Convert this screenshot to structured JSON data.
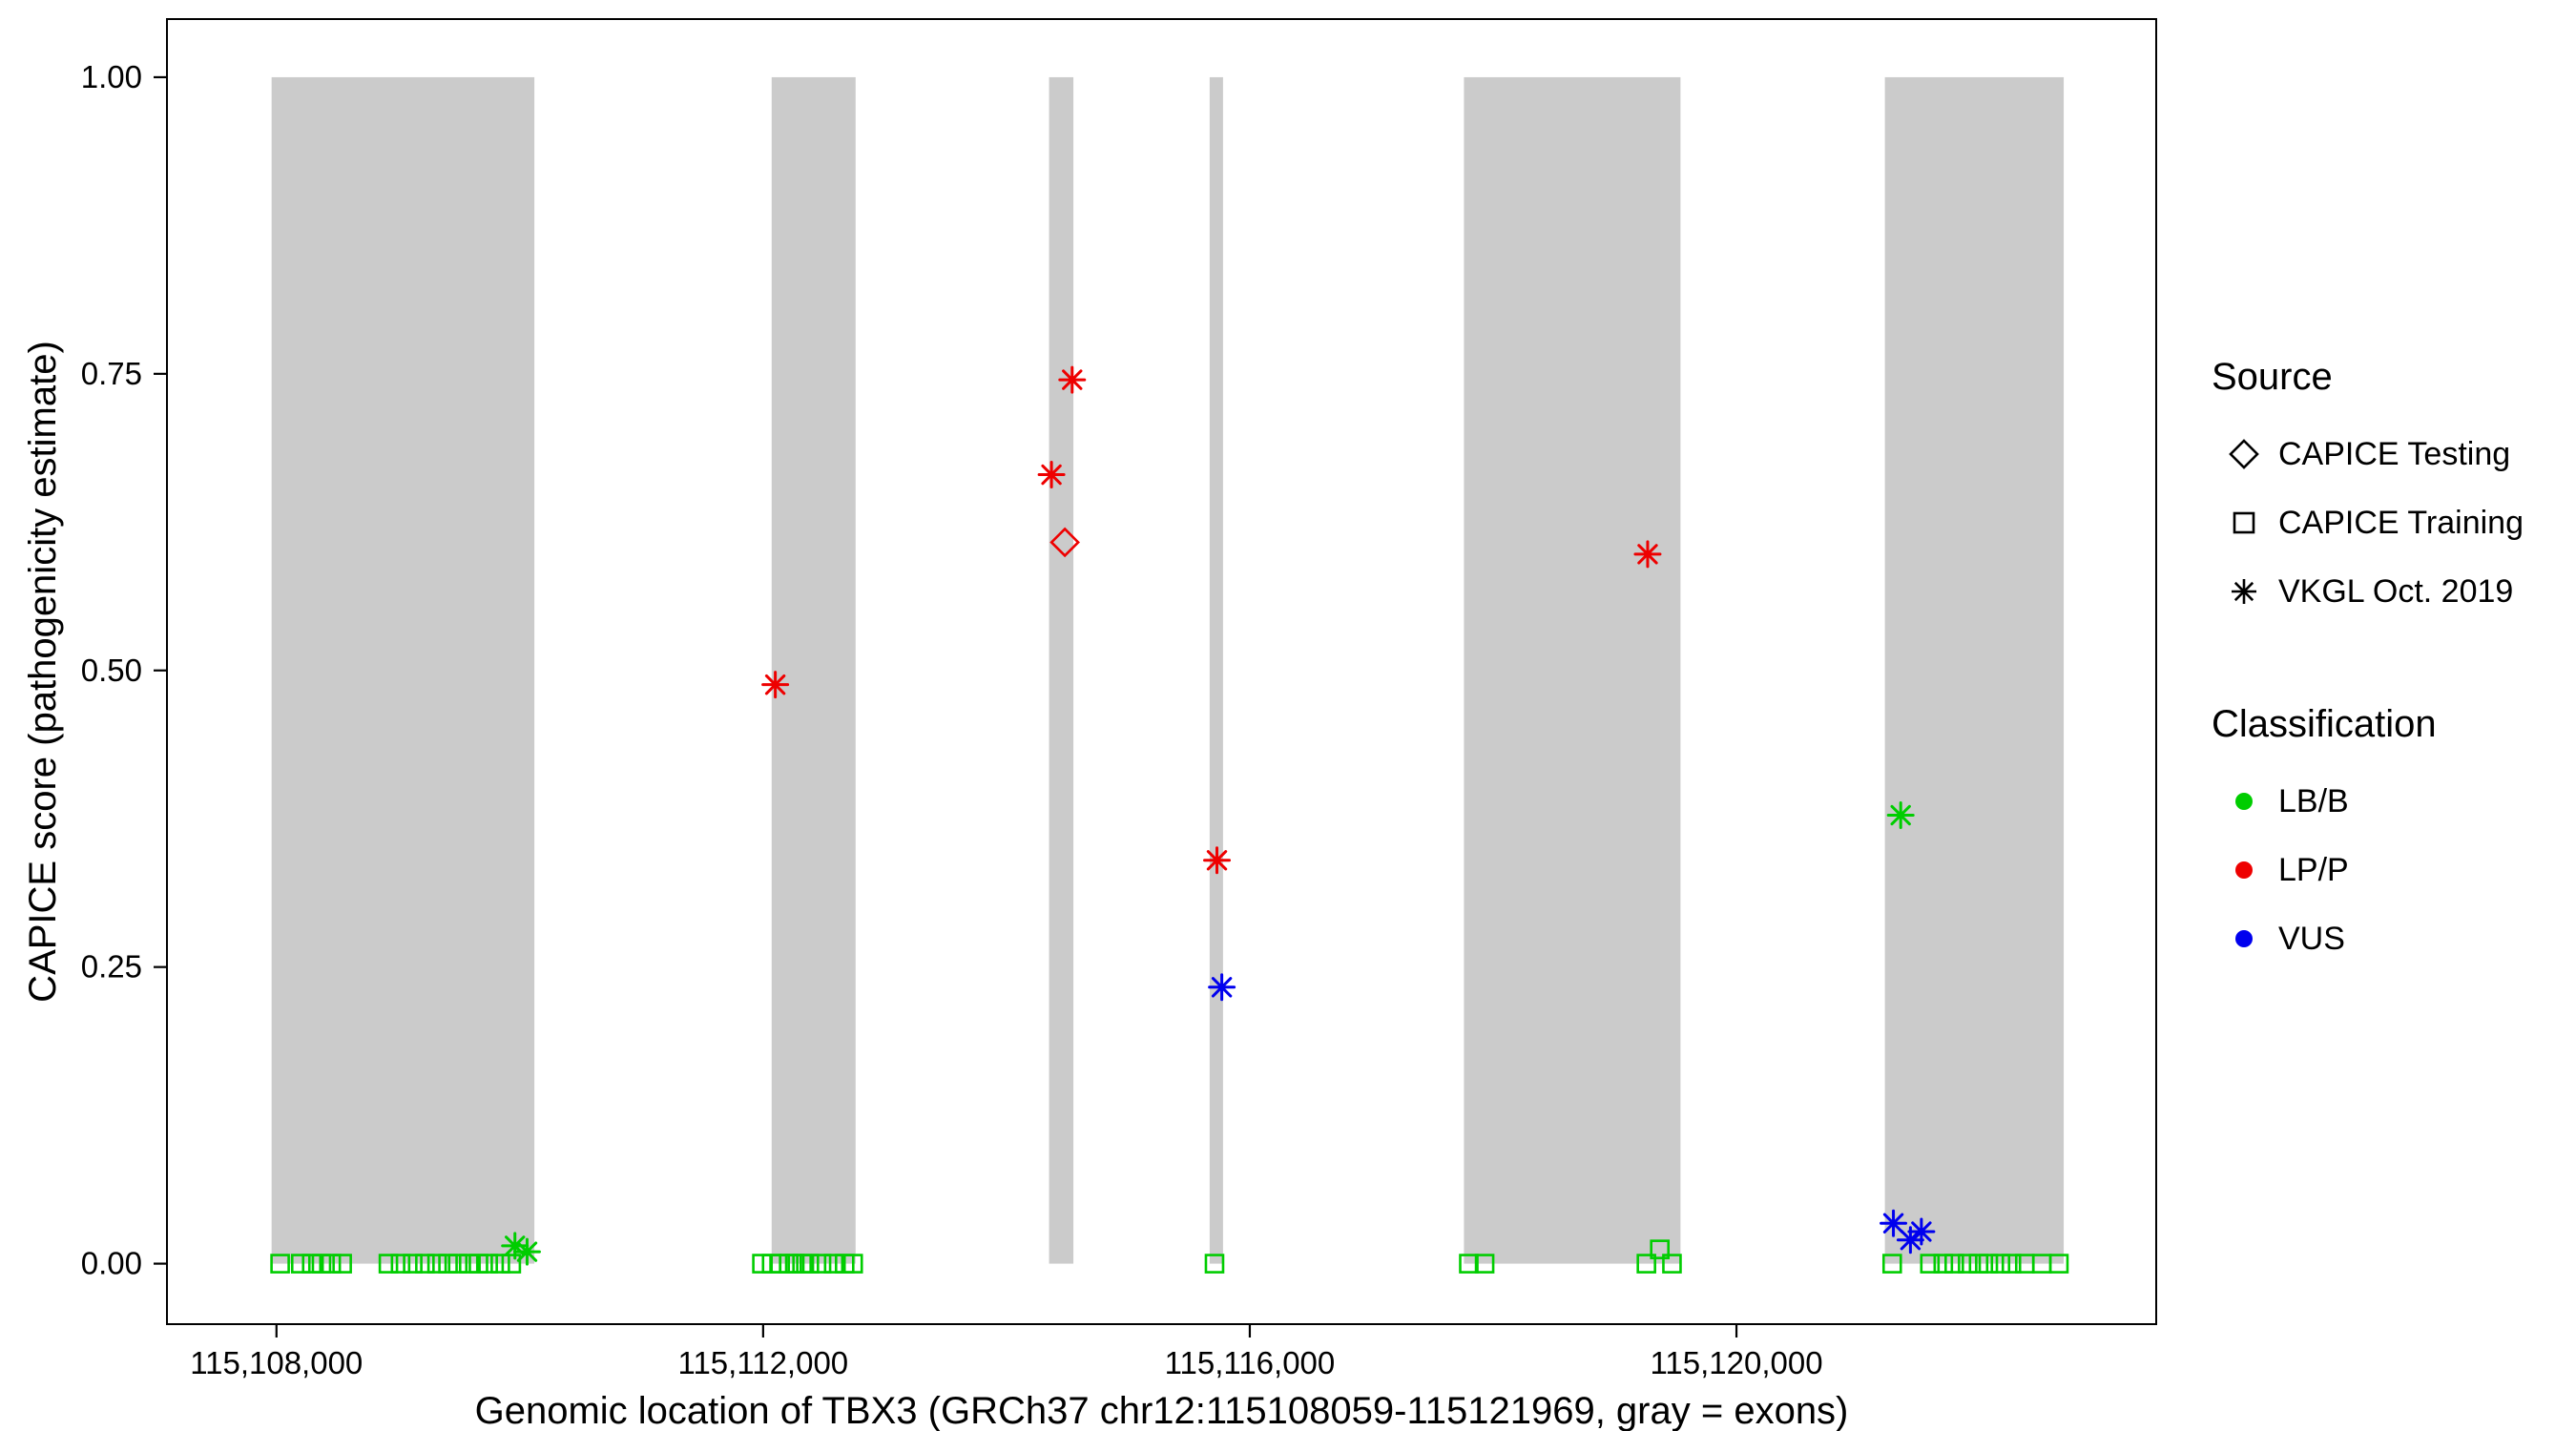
{
  "chart_data": {
    "type": "scatter",
    "title": "",
    "xlabel": "Genomic location of TBX3 (GRCh37 chr12:115108059-115121969, gray = exons)",
    "ylabel": "CAPICE score (pathogenicity estimate)",
    "xlim": [
      115107100,
      115123450
    ],
    "ylim": [
      -0.051,
      1.049
    ],
    "grid": false,
    "x_ticks": [
      {
        "value": 115108000,
        "label": "115,108,000"
      },
      {
        "value": 115112000,
        "label": "115,112,000"
      },
      {
        "value": 115116000,
        "label": "115,116,000"
      },
      {
        "value": 115120000,
        "label": "115,120,000"
      }
    ],
    "y_ticks": [
      {
        "value": 0.0,
        "label": "0.00"
      },
      {
        "value": 0.25,
        "label": "0.25"
      },
      {
        "value": 0.5,
        "label": "0.50"
      },
      {
        "value": 0.75,
        "label": "0.75"
      },
      {
        "value": 1.0,
        "label": "1.00"
      }
    ],
    "exon_bands": [
      [
        115107960,
        115110120
      ],
      [
        115112070,
        115112760
      ],
      [
        115114350,
        115114550
      ],
      [
        115115670,
        115115780
      ],
      [
        115117760,
        115119540
      ],
      [
        115121220,
        115122690
      ]
    ],
    "band_y": [
      0.0,
      1.0
    ],
    "series": [
      {
        "name": "CAPICE Training / LB/B",
        "source": "CAPICE Training",
        "classification": "LB/B",
        "shape": "square",
        "color": "#00CD00",
        "points": [
          [
            115108030,
            0
          ],
          [
            115108200,
            0
          ],
          [
            115108290,
            0
          ],
          [
            115108370,
            0
          ],
          [
            115108450,
            0
          ],
          [
            115108540,
            0
          ],
          [
            115108920,
            0
          ],
          [
            115109020,
            0
          ],
          [
            115109120,
            0
          ],
          [
            115109220,
            0
          ],
          [
            115109320,
            0
          ],
          [
            115109410,
            0
          ],
          [
            115109490,
            0
          ],
          [
            115109580,
            0
          ],
          [
            115109660,
            0
          ],
          [
            115109740,
            0
          ],
          [
            115109840,
            0
          ],
          [
            115109930,
            0
          ],
          [
            115111990,
            0
          ],
          [
            115112070,
            0
          ],
          [
            115112140,
            0
          ],
          [
            115112210,
            0
          ],
          [
            115112260,
            0
          ],
          [
            115112320,
            0
          ],
          [
            115112380,
            0
          ],
          [
            115112480,
            0
          ],
          [
            115112580,
            0
          ],
          [
            115112670,
            0
          ],
          [
            115112740,
            0
          ],
          [
            115115710,
            0
          ],
          [
            115117800,
            0
          ],
          [
            115117930,
            0
          ],
          [
            115119260,
            0
          ],
          [
            115119370,
            0.012
          ],
          [
            115119470,
            0
          ],
          [
            115121280,
            0
          ],
          [
            115121590,
            0
          ],
          [
            115121700,
            0
          ],
          [
            115121790,
            0
          ],
          [
            115121900,
            0
          ],
          [
            115121990,
            0
          ],
          [
            115122070,
            0
          ],
          [
            115122170,
            0
          ],
          [
            115122260,
            0
          ],
          [
            115122370,
            0
          ],
          [
            115122510,
            0
          ],
          [
            115122650,
            0
          ]
        ]
      },
      {
        "name": "CAPICE Testing / LP/P",
        "source": "CAPICE Testing",
        "classification": "LP/P",
        "shape": "diamond",
        "color": "#EE0000",
        "points": [
          [
            115114480,
            0.608
          ]
        ]
      },
      {
        "name": "VKGL Oct. 2019 / LB/B",
        "source": "VKGL Oct. 2019",
        "classification": "LB/B",
        "shape": "asterisk",
        "color": "#00CD00",
        "points": [
          [
            115109960,
            0.015
          ],
          [
            115110060,
            0.01
          ],
          [
            115121350,
            0.378
          ]
        ]
      },
      {
        "name": "VKGL Oct. 2019 / LP/P",
        "source": "VKGL Oct. 2019",
        "classification": "LP/P",
        "shape": "asterisk",
        "color": "#EE0000",
        "points": [
          [
            115112100,
            0.488
          ],
          [
            115114370,
            0.665
          ],
          [
            115114540,
            0.745
          ],
          [
            115115730,
            0.34
          ],
          [
            115119270,
            0.598
          ]
        ]
      },
      {
        "name": "VKGL Oct. 2019 / VUS",
        "source": "VKGL Oct. 2019",
        "classification": "VUS",
        "shape": "asterisk",
        "color": "#0000EE",
        "points": [
          [
            115115770,
            0.233
          ],
          [
            115121290,
            0.034
          ],
          [
            115121430,
            0.02
          ],
          [
            115121520,
            0.027
          ]
        ]
      }
    ]
  },
  "legend": {
    "source": {
      "title": "Source",
      "items": [
        {
          "label": "CAPICE Testing",
          "shape": "diamond"
        },
        {
          "label": "CAPICE Training",
          "shape": "square"
        },
        {
          "label": "VKGL Oct. 2019",
          "shape": "asterisk"
        }
      ]
    },
    "classification": {
      "title": "Classification",
      "items": [
        {
          "label": "LB/B",
          "color": "#00CD00"
        },
        {
          "label": "LP/P",
          "color": "#EE0000"
        },
        {
          "label": "VUS",
          "color": "#0000EE"
        }
      ]
    }
  },
  "colors": {
    "exon_band": "#CBCBCB",
    "axis": "#000000",
    "background": "#FFFFFF"
  }
}
